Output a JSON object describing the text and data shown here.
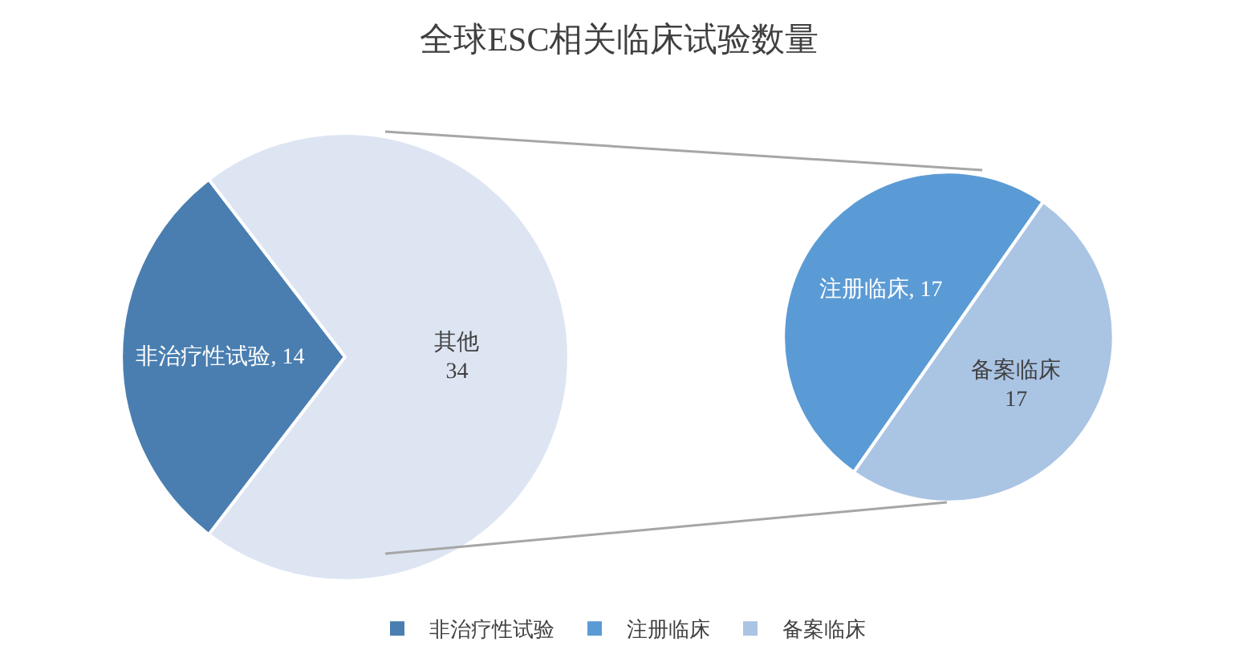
{
  "chart_data": [
    {
      "type": "pie",
      "title": "全球ESC相关临床试验数量",
      "categories": [
        "非治疗性试验",
        null
      ],
      "values": [
        14,
        34
      ],
      "colors": [
        "#4a7eb0",
        "#dde5f3"
      ],
      "value_labels": [
        "非治疗性试验, 14",
        "其他\n34"
      ],
      "legend": "bottom"
    },
    {
      "type": "pie",
      "categories": [
        "注册临床",
        "备案临床"
      ],
      "values": [
        17,
        17
      ],
      "colors": [
        "#5b9bd5",
        "#aac4e4"
      ],
      "value_labels": [
        "注册临床, 17",
        "备案临床\n17"
      ],
      "legend": "bottom"
    }
  ]
}
